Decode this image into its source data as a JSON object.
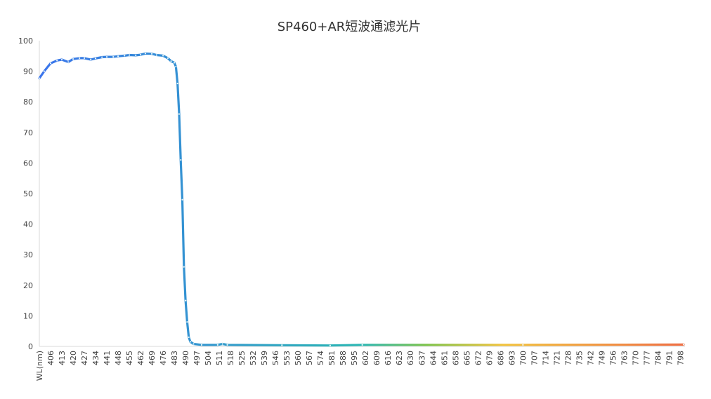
{
  "chart_data": {
    "type": "line",
    "title": "SP460+AR短波通滤光片",
    "xlabel": "WL(nm)",
    "ylabel": "",
    "ylim": [
      0,
      100
    ],
    "y_ticks": [
      0,
      10,
      20,
      30,
      40,
      50,
      60,
      70,
      80,
      90,
      100
    ],
    "xlim": [
      399,
      800
    ],
    "x_tick_labels": [
      "WL(nm)",
      "406",
      "413",
      "420",
      "427",
      "434",
      "441",
      "448",
      "455",
      "462",
      "469",
      "476",
      "483",
      "490",
      "497",
      "504",
      "511",
      "518",
      "525",
      "532",
      "539",
      "546",
      "553",
      "560",
      "567",
      "574",
      "581",
      "588",
      "595",
      "602",
      "609",
      "616",
      "623",
      "630",
      "637",
      "644",
      "651",
      "658",
      "665",
      "672",
      "679",
      "686",
      "693",
      "700",
      "707",
      "714",
      "721",
      "728",
      "735",
      "742",
      "749",
      "756",
      "763",
      "770",
      "777",
      "784",
      "791",
      "798"
    ],
    "grid": false,
    "legend": "none",
    "line_gradient_colors": [
      "#3a74ec",
      "#2bb7b3",
      "#7cc34a",
      "#f2c23c",
      "#ee6f45"
    ],
    "x": [
      399,
      402,
      406,
      410,
      413,
      417,
      420,
      424,
      427,
      431,
      434,
      438,
      441,
      445,
      448,
      452,
      455,
      459,
      462,
      465,
      469,
      472,
      476,
      479,
      481,
      483,
      484,
      485,
      486,
      487,
      488,
      489,
      490,
      491,
      492,
      493,
      495,
      500,
      510,
      513,
      516,
      550,
      580,
      600,
      700,
      800
    ],
    "y": [
      87.7,
      90.0,
      92.6,
      93.5,
      93.8,
      93.0,
      94.0,
      94.3,
      94.3,
      93.8,
      94.2,
      94.6,
      94.7,
      94.7,
      94.9,
      95.1,
      95.3,
      95.2,
      95.4,
      95.8,
      95.7,
      95.3,
      95.1,
      94.3,
      93.3,
      92.8,
      91.5,
      86,
      76,
      61,
      48,
      26,
      15,
      8,
      3,
      1.5,
      0.8,
      0.5,
      0.5,
      0.8,
      0.5,
      0.4,
      0.3,
      0.5,
      0.5,
      0.6
    ]
  }
}
